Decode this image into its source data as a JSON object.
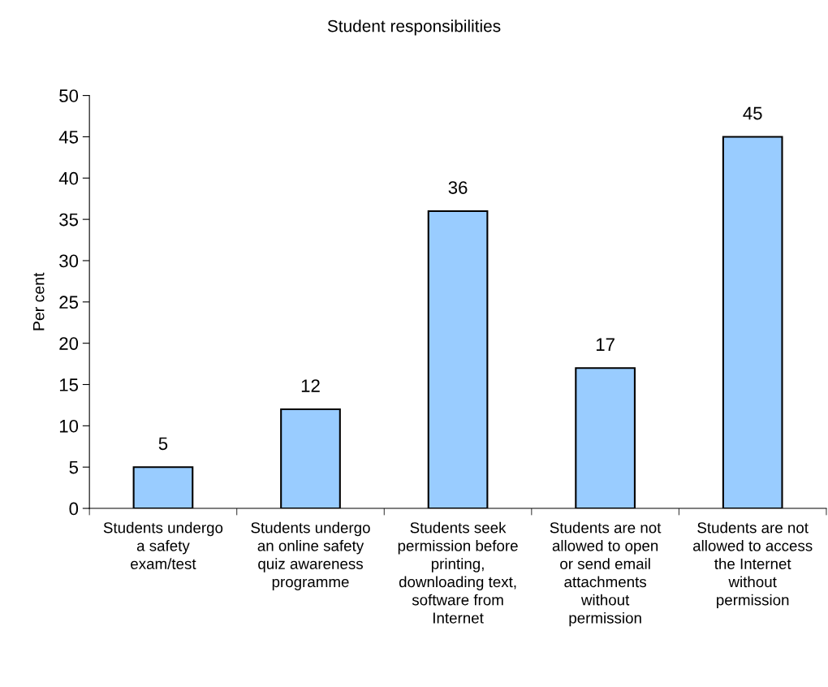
{
  "chart_data": {
    "type": "bar",
    "title": "Student responsibilities",
    "ylabel": "Per cent",
    "categories": [
      "Students undergo\na safety\nexam/test",
      "Students undergo\nan online safety\nquiz awareness\nprogramme",
      "Students seek\npermission before\nprinting,\ndownloading text,\nsoftware from\nInternet",
      "Students are not\nallowed to open\nor send email\nattachments\nwithout\npermission",
      "Students are not\nallowed to access\nthe Internet\nwithout\npermission"
    ],
    "values": [
      5,
      12,
      36,
      17,
      45
    ],
    "color": "#99ccff",
    "ylim": [
      0,
      50
    ],
    "yticks": [
      0,
      5,
      10,
      15,
      20,
      25,
      30,
      35,
      40,
      45,
      50
    ],
    "data_labels": true,
    "grid": false,
    "legend": false
  }
}
